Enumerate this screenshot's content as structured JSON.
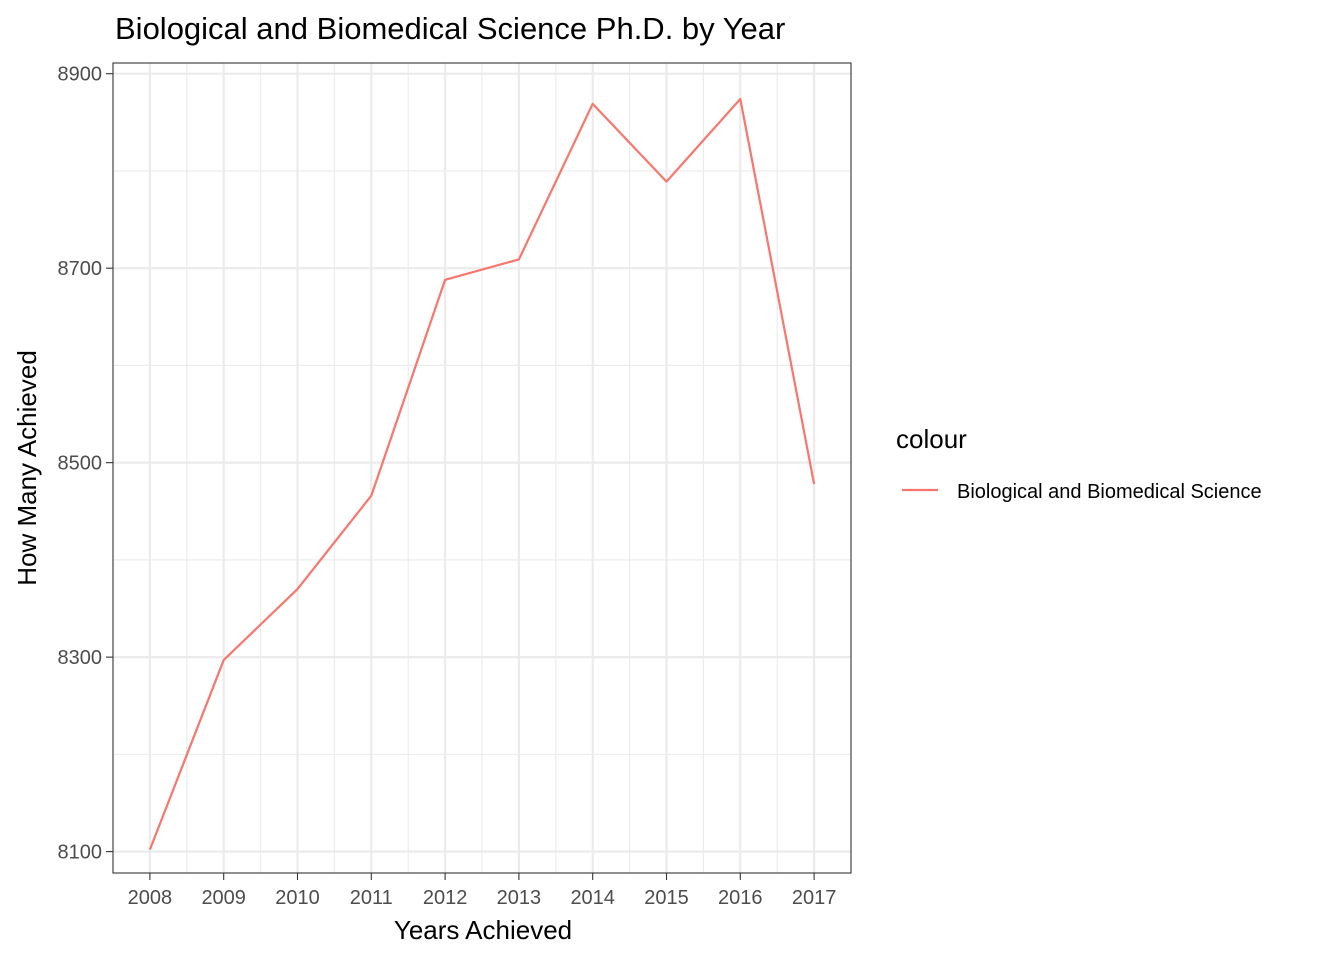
{
  "chart_data": {
    "type": "line",
    "title": "Biological and Biomedical Science Ph.D. by Year",
    "xlabel": "Years Achieved",
    "ylabel": "How Many Achieved",
    "x": [
      "2008",
      "2009",
      "2010",
      "2011",
      "2012",
      "2013",
      "2014",
      "2015",
      "2016",
      "2017"
    ],
    "series": [
      {
        "name": "Biological and Biomedical Science",
        "color": "#F8766D",
        "values": [
          8102,
          8297,
          8370,
          8466,
          8688,
          8709,
          8869,
          8789,
          8874,
          8478
        ]
      }
    ],
    "yticks": [
      "8100",
      "8300",
      "8500",
      "8700",
      "8900"
    ],
    "ylim": [
      8078,
      8911
    ],
    "grid": true,
    "legend": {
      "title": "colour",
      "position": "right"
    }
  }
}
